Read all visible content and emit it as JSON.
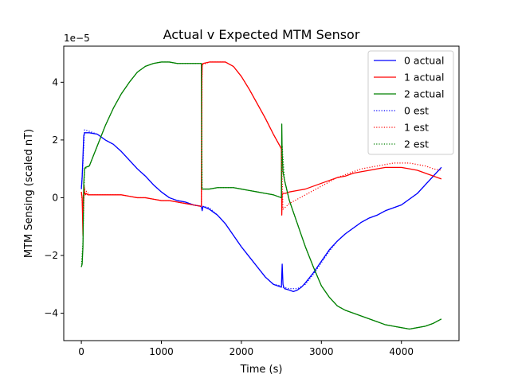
{
  "chart_data": {
    "type": "line",
    "title": "Actual v Expected MTM Sensor",
    "xlabel": "Time (s)",
    "ylabel": "MTM Sensing (scaled nT)",
    "y_scale_label": "1e−5",
    "xlim": [
      -220,
      4720
    ],
    "ylim": [
      -4.95,
      5.25
    ],
    "x_ticks": [
      0,
      1000,
      2000,
      3000,
      4000
    ],
    "x_tick_labels": [
      "0",
      "1000",
      "2000",
      "3000",
      "4000"
    ],
    "y_ticks": [
      -4,
      -2,
      0,
      2,
      4
    ],
    "y_tick_labels": [
      "−4",
      "−2",
      "0",
      "2",
      "4"
    ],
    "grid": false,
    "legend_position": "top-right",
    "series": [
      {
        "name": "0 actual",
        "color": "#0000ff",
        "style": "solid",
        "x": [
          0,
          10,
          30,
          40,
          60,
          100,
          200,
          300,
          400,
          500,
          600,
          700,
          800,
          900,
          1000,
          1100,
          1200,
          1300,
          1400,
          1500,
          1510,
          1520,
          1560,
          1600,
          1700,
          1800,
          1900,
          2000,
          2100,
          2200,
          2300,
          2400,
          2500,
          2510,
          2520,
          2530,
          2540,
          2600,
          2650,
          2700,
          2750,
          2800,
          2900,
          3000,
          3100,
          3200,
          3300,
          3400,
          3500,
          3600,
          3700,
          3800,
          3900,
          4000,
          4100,
          4200,
          4300,
          4400,
          4500
        ],
        "y": [
          0.3,
          0.7,
          2.15,
          2.25,
          2.25,
          2.25,
          2.2,
          2.0,
          1.85,
          1.6,
          1.3,
          1.0,
          0.75,
          0.45,
          0.2,
          0.0,
          -0.1,
          -0.15,
          -0.25,
          -0.3,
          -0.45,
          -0.3,
          -0.35,
          -0.4,
          -0.6,
          -0.9,
          -1.3,
          -1.7,
          -2.05,
          -2.4,
          -2.75,
          -3.0,
          -3.1,
          -2.3,
          -3.0,
          -3.1,
          -3.15,
          -3.2,
          -3.25,
          -3.2,
          -3.1,
          -2.95,
          -2.6,
          -2.2,
          -1.8,
          -1.5,
          -1.25,
          -1.05,
          -0.85,
          -0.7,
          -0.6,
          -0.45,
          -0.35,
          -0.25,
          -0.05,
          0.15,
          0.45,
          0.75,
          1.05
        ]
      },
      {
        "name": "1 actual",
        "color": "#ff0000",
        "style": "solid",
        "x": [
          0,
          10,
          20,
          25,
          35,
          40,
          50,
          60,
          80,
          100,
          200,
          300,
          400,
          500,
          600,
          700,
          800,
          900,
          1000,
          1100,
          1200,
          1300,
          1400,
          1500,
          1505,
          1510,
          1520,
          1600,
          1700,
          1800,
          1900,
          2000,
          2100,
          2200,
          2300,
          2400,
          2500,
          2505,
          2510,
          2520,
          2550,
          2600,
          2700,
          2800,
          2900,
          3000,
          3100,
          3200,
          3300,
          3400,
          3500,
          3600,
          3700,
          3800,
          3900,
          4000,
          4100,
          4200,
          4300,
          4400,
          4500
        ],
        "y": [
          0.2,
          0.0,
          -1.3,
          0.0,
          0.4,
          0.2,
          0.1,
          0.15,
          0.1,
          0.1,
          0.1,
          0.1,
          0.1,
          0.1,
          0.05,
          0.0,
          0.0,
          -0.05,
          -0.1,
          -0.1,
          -0.15,
          -0.2,
          -0.25,
          -0.3,
          4.0,
          4.6,
          4.65,
          4.7,
          4.7,
          4.7,
          4.55,
          4.2,
          3.75,
          3.25,
          2.75,
          2.2,
          1.7,
          -0.6,
          0.1,
          0.15,
          0.15,
          0.2,
          0.25,
          0.3,
          0.4,
          0.5,
          0.6,
          0.7,
          0.75,
          0.85,
          0.9,
          0.95,
          1.0,
          1.05,
          1.05,
          1.05,
          1.0,
          0.95,
          0.85,
          0.75,
          0.65
        ]
      },
      {
        "name": "2 actual",
        "color": "#008000",
        "style": "solid",
        "x": [
          0,
          10,
          20,
          30,
          40,
          50,
          100,
          200,
          300,
          400,
          500,
          600,
          700,
          800,
          900,
          1000,
          1100,
          1200,
          1300,
          1400,
          1500,
          1505,
          1510,
          1520,
          1600,
          1700,
          1800,
          1900,
          2000,
          2100,
          2200,
          2300,
          2400,
          2500,
          2505,
          2510,
          2520,
          2540,
          2600,
          2700,
          2800,
          2900,
          3000,
          3100,
          3200,
          3300,
          3400,
          3500,
          3600,
          3700,
          3800,
          3900,
          4000,
          4100,
          4200,
          4300,
          4400,
          4500
        ],
        "y": [
          -2.4,
          -2.3,
          -1.7,
          0.5,
          1.0,
          1.05,
          1.1,
          1.8,
          2.5,
          3.1,
          3.6,
          4.0,
          4.35,
          4.55,
          4.65,
          4.7,
          4.7,
          4.65,
          4.65,
          4.65,
          4.65,
          0.3,
          0.3,
          0.3,
          0.3,
          0.35,
          0.35,
          0.35,
          0.3,
          0.25,
          0.2,
          0.15,
          0.1,
          0.0,
          2.55,
          1.5,
          0.9,
          0.6,
          -0.1,
          -0.9,
          -1.7,
          -2.4,
          -3.05,
          -3.45,
          -3.75,
          -3.9,
          -4.0,
          -4.1,
          -4.2,
          -4.3,
          -4.4,
          -4.45,
          -4.5,
          -4.55,
          -4.5,
          -4.45,
          -4.35,
          -4.2
        ]
      },
      {
        "name": "0 est",
        "color": "#0000ff",
        "style": "dotted",
        "x": [
          0,
          20,
          40,
          100,
          200,
          300,
          400,
          500,
          600,
          700,
          800,
          900,
          1000,
          1100,
          1200,
          1300,
          1400,
          1500,
          1520,
          1600,
          1700,
          1800,
          1900,
          2000,
          2100,
          2200,
          2300,
          2400,
          2500,
          2520,
          2600,
          2700,
          2800,
          2900,
          3000,
          3100,
          3200,
          3300,
          3400,
          3500,
          3600,
          3700,
          3800,
          3900,
          4000,
          4100,
          4200,
          4300,
          4400,
          4500
        ],
        "y": [
          0.3,
          1.2,
          2.35,
          2.3,
          2.2,
          2.0,
          1.85,
          1.6,
          1.3,
          1.0,
          0.75,
          0.45,
          0.2,
          0.0,
          -0.1,
          -0.15,
          -0.25,
          -0.3,
          -0.3,
          -0.35,
          -0.6,
          -0.9,
          -1.3,
          -1.7,
          -2.05,
          -2.4,
          -2.75,
          -3.0,
          -3.05,
          -3.1,
          -3.15,
          -3.15,
          -3.0,
          -2.65,
          -2.25,
          -1.85,
          -1.5,
          -1.25,
          -1.05,
          -0.85,
          -0.7,
          -0.6,
          -0.45,
          -0.35,
          -0.25,
          -0.05,
          0.15,
          0.45,
          0.75,
          1.05
        ]
      },
      {
        "name": "1 est",
        "color": "#ff0000",
        "style": "dotted",
        "x": [
          0,
          20,
          40,
          100,
          200,
          300,
          400,
          500,
          600,
          700,
          800,
          900,
          1000,
          1100,
          1200,
          1300,
          1400,
          1500,
          1510,
          1600,
          1700,
          1800,
          1900,
          2000,
          2100,
          2200,
          2300,
          2400,
          2500,
          2520,
          2600,
          2700,
          2800,
          2900,
          3000,
          3100,
          3200,
          3300,
          3400,
          3500,
          3600,
          3700,
          3800,
          3900,
          4000,
          4100,
          4200,
          4300,
          4400,
          4500
        ],
        "y": [
          0.2,
          -0.5,
          0.3,
          0.1,
          0.1,
          0.1,
          0.1,
          0.1,
          0.05,
          0.0,
          0.0,
          -0.05,
          -0.1,
          -0.1,
          -0.15,
          -0.2,
          -0.25,
          -0.3,
          4.6,
          4.7,
          4.7,
          4.7,
          4.55,
          4.2,
          3.75,
          3.25,
          2.75,
          2.2,
          1.7,
          -0.4,
          -0.2,
          -0.05,
          0.1,
          0.25,
          0.4,
          0.55,
          0.7,
          0.8,
          0.9,
          1.0,
          1.05,
          1.1,
          1.15,
          1.2,
          1.2,
          1.2,
          1.15,
          1.1,
          1.0,
          0.95
        ]
      },
      {
        "name": "2 est",
        "color": "#008000",
        "style": "dotted",
        "x": [
          0,
          20,
          40,
          100,
          200,
          300,
          400,
          500,
          600,
          700,
          800,
          900,
          1000,
          1100,
          1200,
          1300,
          1400,
          1500,
          1510,
          1600,
          1700,
          1800,
          1900,
          2000,
          2100,
          2200,
          2300,
          2400,
          2500,
          2510,
          2540,
          2600,
          2700,
          2800,
          2900,
          3000,
          3100,
          3200,
          3300,
          3400,
          3500,
          3600,
          3700,
          3800,
          3900,
          4000,
          4100,
          4200,
          4300,
          4400,
          4500
        ],
        "y": [
          -2.4,
          -1.5,
          1.0,
          1.1,
          1.8,
          2.5,
          3.1,
          3.6,
          4.0,
          4.35,
          4.55,
          4.65,
          4.7,
          4.7,
          4.65,
          4.65,
          4.65,
          4.65,
          0.3,
          0.3,
          0.35,
          0.35,
          0.35,
          0.3,
          0.25,
          0.2,
          0.15,
          0.1,
          0.0,
          1.8,
          0.6,
          -0.1,
          -0.9,
          -1.7,
          -2.4,
          -3.05,
          -3.45,
          -3.75,
          -3.9,
          -4.0,
          -4.1,
          -4.2,
          -4.3,
          -4.4,
          -4.45,
          -4.5,
          -4.55,
          -4.5,
          -4.45,
          -4.35,
          -4.2
        ]
      }
    ]
  }
}
